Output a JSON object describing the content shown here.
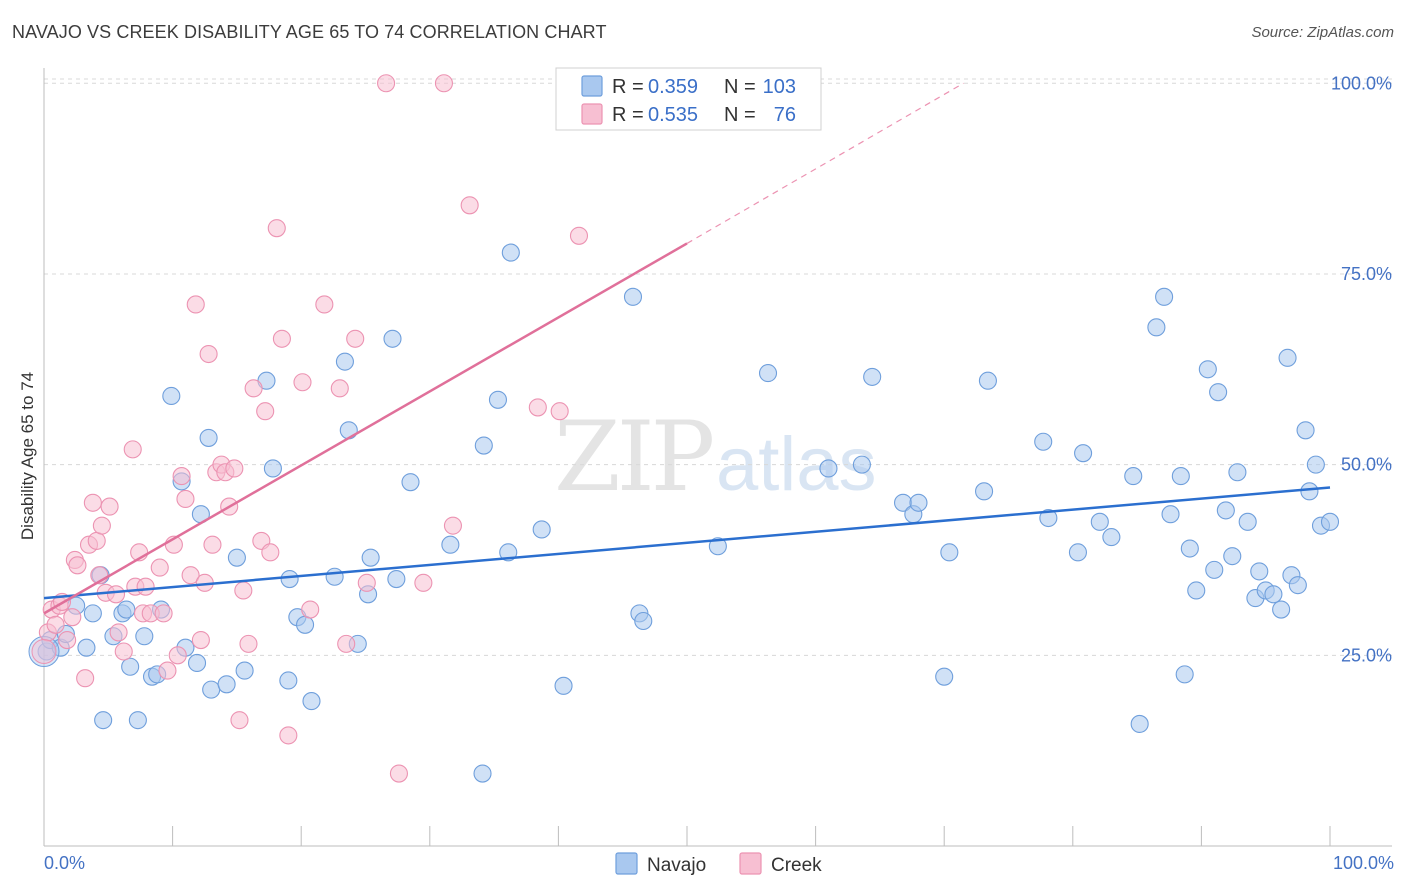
{
  "title": "NAVAJO VS CREEK DISABILITY AGE 65 TO 74 CORRELATION CHART",
  "source": "Source: ZipAtlas.com",
  "watermark": {
    "zip": "ZIP",
    "atlas": "atlas"
  },
  "colors": {
    "navajo_fill": "#a9c8ef",
    "navajo_stroke": "#6f9fdc",
    "navajo_line": "#2b6fcf",
    "creek_fill": "#f7bfd2",
    "creek_stroke": "#ec93b2",
    "creek_line": "#e0709a",
    "grid": "#d8d8d8",
    "axis_label": "#4472c4"
  },
  "legend": {
    "r_label": "R =",
    "n_label": "N =",
    "navajo": {
      "r": "0.359",
      "n": "103"
    },
    "creek": {
      "r": "0.535",
      "n": "76"
    }
  },
  "chart_data": {
    "type": "scatter",
    "title": "NAVAJO VS CREEK DISABILITY AGE 65 TO 74 CORRELATION CHART",
    "xlabel": "",
    "ylabel": "Disability Age 65 to 74",
    "xlim": [
      0,
      100
    ],
    "ylim": [
      0,
      102
    ],
    "x_tick_labels": [
      "0.0%",
      "100.0%"
    ],
    "y_ticks": [
      25,
      50,
      75,
      100
    ],
    "y_tick_labels": [
      "25.0%",
      "50.0%",
      "75.0%",
      "100.0%"
    ],
    "grid": true,
    "legend_position": "top-center",
    "series": [
      {
        "name": "Navajo",
        "trend": {
          "x0": 0,
          "y0": 32.5,
          "x1": 100,
          "y1": 47.0
        },
        "points": [
          [
            0.2,
            25.5
          ],
          [
            0.5,
            27
          ],
          [
            1.3,
            26
          ],
          [
            1.7,
            27.8
          ],
          [
            2.5,
            31.5
          ],
          [
            3.3,
            26
          ],
          [
            3.8,
            30.5
          ],
          [
            4.4,
            35.5
          ],
          [
            4.6,
            16.5
          ],
          [
            5.4,
            27.5
          ],
          [
            6.1,
            30.5
          ],
          [
            6.4,
            31
          ],
          [
            6.7,
            23.5
          ],
          [
            7.3,
            16.5
          ],
          [
            7.8,
            27.5
          ],
          [
            8.4,
            22.2
          ],
          [
            8.8,
            22.5
          ],
          [
            9.1,
            31
          ],
          [
            9.9,
            59
          ],
          [
            10.7,
            47.8
          ],
          [
            11,
            26
          ],
          [
            11.9,
            24
          ],
          [
            12.2,
            43.5
          ],
          [
            12.8,
            53.5
          ],
          [
            13,
            20.5
          ],
          [
            14.2,
            21.2
          ],
          [
            15,
            37.8
          ],
          [
            15.6,
            23
          ],
          [
            17.3,
            61
          ],
          [
            17.8,
            49.5
          ],
          [
            19,
            21.7
          ],
          [
            19.1,
            35
          ],
          [
            19.7,
            30
          ],
          [
            20.3,
            29
          ],
          [
            20.8,
            19
          ],
          [
            22.6,
            35.3
          ],
          [
            23.4,
            63.5
          ],
          [
            23.7,
            54.5
          ],
          [
            24.4,
            26.5
          ],
          [
            25.2,
            33
          ],
          [
            25.4,
            37.8
          ],
          [
            27.1,
            66.5
          ],
          [
            27.4,
            35
          ],
          [
            28.5,
            47.7
          ],
          [
            31.6,
            39.5
          ],
          [
            34.1,
            9.5
          ],
          [
            34.2,
            52.5
          ],
          [
            35.3,
            58.5
          ],
          [
            36.1,
            38.5
          ],
          [
            36.3,
            77.8
          ],
          [
            38.7,
            41.5
          ],
          [
            40.4,
            21
          ],
          [
            45.8,
            72
          ],
          [
            46.3,
            30.5
          ],
          [
            46.6,
            29.5
          ],
          [
            52.4,
            39.3
          ],
          [
            56.3,
            62
          ],
          [
            61,
            49.5
          ],
          [
            63.6,
            50
          ],
          [
            64.4,
            61.5
          ],
          [
            66.8,
            45
          ],
          [
            67.6,
            43.5
          ],
          [
            68,
            45
          ],
          [
            70,
            22.2
          ],
          [
            70.4,
            38.5
          ],
          [
            73.1,
            46.5
          ],
          [
            73.4,
            61
          ],
          [
            77.7,
            53
          ],
          [
            78.1,
            43
          ],
          [
            80.4,
            38.5
          ],
          [
            80.8,
            51.5
          ],
          [
            82.1,
            42.5
          ],
          [
            83,
            40.5
          ],
          [
            84.7,
            48.5
          ],
          [
            85.2,
            16
          ],
          [
            86.5,
            68
          ],
          [
            87.1,
            72
          ],
          [
            87.6,
            43.5
          ],
          [
            88.4,
            48.5
          ],
          [
            88.7,
            22.5
          ],
          [
            89.1,
            39
          ],
          [
            89.6,
            33.5
          ],
          [
            90.5,
            62.5
          ],
          [
            91,
            36.2
          ],
          [
            91.3,
            59.5
          ],
          [
            91.9,
            44
          ],
          [
            92.4,
            38
          ],
          [
            92.8,
            49
          ],
          [
            93.6,
            42.5
          ],
          [
            94.2,
            32.5
          ],
          [
            94.5,
            36
          ],
          [
            95,
            33.5
          ],
          [
            95.6,
            33
          ],
          [
            96.2,
            31
          ],
          [
            96.7,
            64
          ],
          [
            97,
            35.5
          ],
          [
            97.5,
            34.2
          ],
          [
            98.1,
            54.5
          ],
          [
            98.4,
            46.5
          ],
          [
            98.9,
            50
          ],
          [
            99.3,
            42
          ],
          [
            100,
            42.5
          ]
        ]
      },
      {
        "name": "Creek",
        "trend": {
          "x0": 0,
          "y0": 30.5,
          "x1": 50.0,
          "y1": 79.0,
          "dash_x1": 71.5,
          "dash_y1": 100.0
        },
        "points": [
          [
            0.3,
            28
          ],
          [
            0.6,
            31
          ],
          [
            0.9,
            29
          ],
          [
            1.2,
            31.5
          ],
          [
            1.4,
            32
          ],
          [
            1.8,
            27
          ],
          [
            2.2,
            30
          ],
          [
            2.4,
            37.5
          ],
          [
            2.6,
            36.8
          ],
          [
            3.2,
            22
          ],
          [
            3.5,
            39.5
          ],
          [
            3.8,
            45
          ],
          [
            4.1,
            40
          ],
          [
            4.3,
            35.5
          ],
          [
            4.5,
            42
          ],
          [
            4.8,
            33.2
          ],
          [
            5.1,
            44.5
          ],
          [
            5.6,
            33
          ],
          [
            5.8,
            28
          ],
          [
            6.2,
            25.5
          ],
          [
            6.9,
            52
          ],
          [
            7.1,
            34
          ],
          [
            7.4,
            38.5
          ],
          [
            7.7,
            30.5
          ],
          [
            7.9,
            34
          ],
          [
            8.3,
            30.5
          ],
          [
            9,
            36.5
          ],
          [
            9.3,
            30.5
          ],
          [
            9.6,
            23
          ],
          [
            10.1,
            39.5
          ],
          [
            10.4,
            25
          ],
          [
            10.7,
            48.5
          ],
          [
            11,
            45.5
          ],
          [
            11.4,
            35.5
          ],
          [
            11.8,
            71
          ],
          [
            12.2,
            27
          ],
          [
            12.5,
            34.5
          ],
          [
            12.8,
            64.5
          ],
          [
            13.1,
            39.5
          ],
          [
            13.4,
            49
          ],
          [
            13.8,
            50
          ],
          [
            14.1,
            49
          ],
          [
            14.4,
            44.5
          ],
          [
            14.8,
            49.5
          ],
          [
            15.2,
            16.5
          ],
          [
            15.5,
            33.5
          ],
          [
            15.9,
            26.5
          ],
          [
            16.3,
            60
          ],
          [
            16.9,
            40
          ],
          [
            17.2,
            57
          ],
          [
            17.6,
            38.5
          ],
          [
            18.1,
            81
          ],
          [
            18.5,
            66.5
          ],
          [
            19,
            14.5
          ],
          [
            20.1,
            60.8
          ],
          [
            20.7,
            31
          ],
          [
            21.8,
            71
          ],
          [
            23,
            60
          ],
          [
            23.5,
            26.5
          ],
          [
            24.2,
            66.5
          ],
          [
            25.1,
            34.5
          ],
          [
            26.6,
            100
          ],
          [
            27.6,
            9.5
          ],
          [
            29.5,
            34.5
          ],
          [
            31.1,
            100
          ],
          [
            31.8,
            42
          ],
          [
            33.1,
            84
          ],
          [
            38.4,
            57.5
          ],
          [
            40.1,
            57
          ],
          [
            41.6,
            80
          ]
        ]
      }
    ]
  },
  "bottom_legend": {
    "navajo": "Navajo",
    "creek": "Creek"
  }
}
